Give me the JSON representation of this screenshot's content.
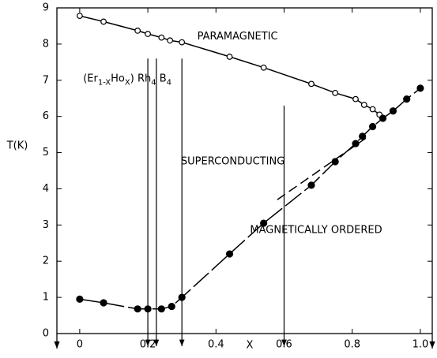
{
  "chart_data": {
    "type": "scatter",
    "xlabel": "X",
    "ylabel": "T(K)",
    "xlim": [
      -0.067,
      1.035
    ],
    "ylim": [
      0,
      9
    ],
    "xticks": [
      0,
      0.2,
      0.4,
      0.6,
      0.8,
      {
        "value": 1,
        "label": "1.0"
      }
    ],
    "yticks": [
      0,
      1,
      2,
      3,
      4,
      5,
      6,
      7,
      8,
      9
    ],
    "series": [
      {
        "marker": "open",
        "line_style": "solid",
        "color": "#000000",
        "x": [
          0,
          0.07,
          0.17,
          0.2,
          0.24,
          0.265,
          0.3,
          0.44,
          0.54,
          0.68,
          0.75,
          0.81,
          0.835,
          0.86,
          0.88
        ],
        "values": [
          8.78,
          8.62,
          8.37,
          8.28,
          8.18,
          8.1,
          8.05,
          7.65,
          7.35,
          6.9,
          6.65,
          6.48,
          6.32,
          6.2,
          6.05
        ]
      },
      {
        "marker": "filled",
        "line_style": "dash",
        "color": "#000000",
        "x": [
          0,
          0.07,
          0.17,
          0.2,
          0.24,
          0.27,
          0.3,
          0.44,
          0.54,
          0.68,
          0.75,
          0.81,
          0.83,
          0.86,
          0.89,
          0.92,
          0.96,
          1.0
        ],
        "values": [
          0.95,
          0.85,
          0.68,
          0.68,
          0.68,
          0.75,
          1.0,
          2.2,
          3.05,
          4.1,
          4.75,
          5.25,
          5.45,
          5.72,
          5.95,
          6.15,
          6.48,
          6.78
        ]
      }
    ],
    "extrapolation": {
      "x": [
        0.58,
        0.84
      ],
      "values": [
        3.7,
        5.4
      ]
    },
    "arrows": {
      "x": [
        0.2,
        0.225,
        0.3,
        0.6
      ],
      "from": [
        7.6,
        7.6,
        7.6,
        6.3
      ]
    },
    "annotations": [
      {
        "text": "PARAMAGNETIC",
        "x": 0.345,
        "y": 8.2
      },
      {
        "text": "SUPERCONDUCTING",
        "x": 0.297,
        "y": 4.75
      },
      {
        "text": "MAGNETICALLY ORDERED",
        "x": 0.5,
        "y": 2.85
      }
    ],
    "formula": {
      "x": 0.01,
      "y": 7.05,
      "parts": [
        "(Er",
        "1-X",
        "Ho",
        "X",
        ") Rh",
        "4",
        " B",
        "4"
      ]
    }
  }
}
